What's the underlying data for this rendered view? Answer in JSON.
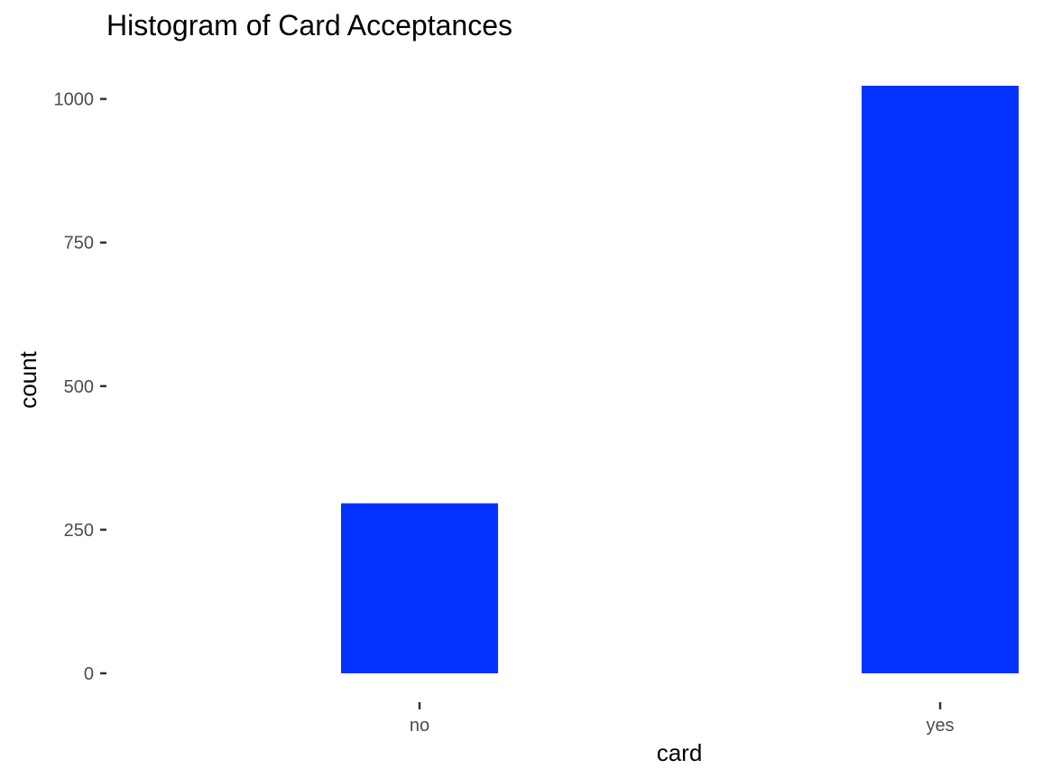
{
  "chart_data": {
    "type": "bar",
    "title": "Histogram of Card Acceptances",
    "xlabel": "card",
    "ylabel": "count",
    "categories": [
      "no",
      "yes"
    ],
    "values": [
      296,
      1023
    ],
    "ylim": [
      0,
      1023
    ],
    "yticks": [
      0,
      250,
      500,
      750,
      1000
    ],
    "grid": false,
    "legend": "none",
    "bar_color": "#0433ff"
  }
}
